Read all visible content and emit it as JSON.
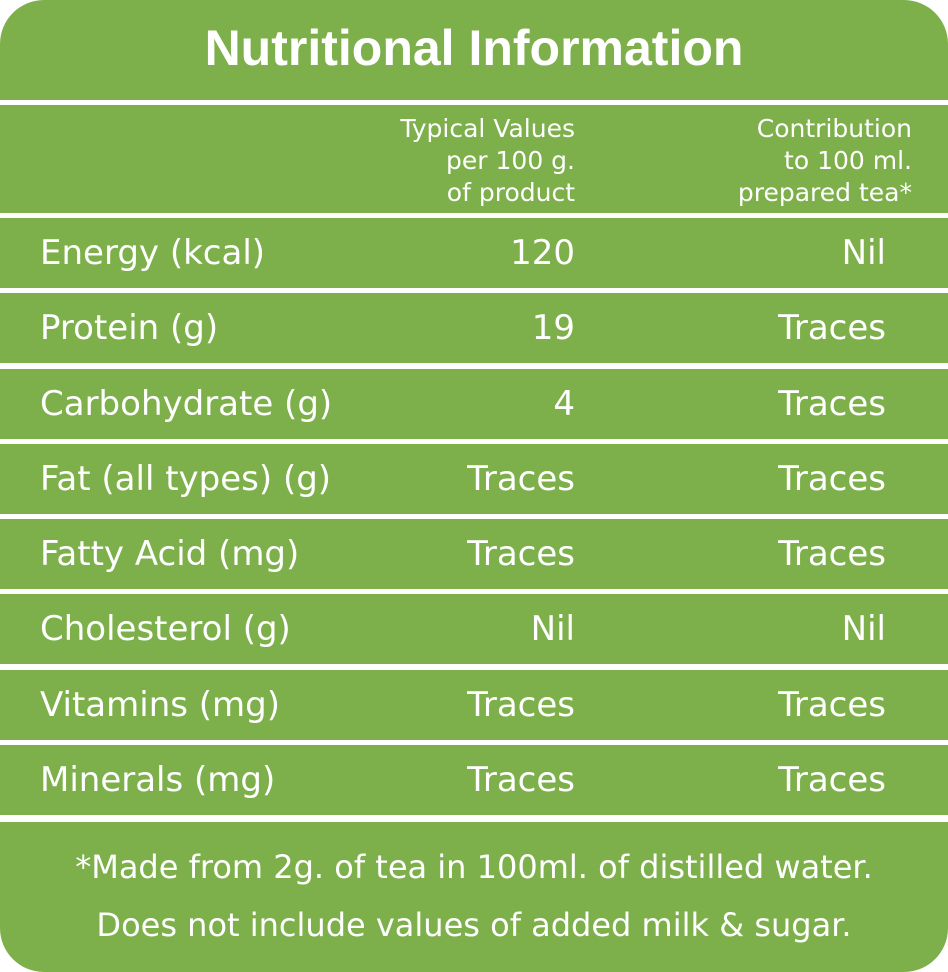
{
  "title": "Nutritional Information",
  "columns": {
    "typical": "Typical Values\nper 100 g.\nof product",
    "contribution": "Contribution\nto 100 ml.\nprepared tea*"
  },
  "rows": [
    {
      "label": "Energy (kcal)",
      "typical": "120",
      "contribution": "Nil"
    },
    {
      "label": "Protein (g)",
      "typical": "19",
      "contribution": "Traces"
    },
    {
      "label": "Carbohydrate (g)",
      "typical": "4",
      "contribution": "Traces"
    },
    {
      "label": "Fat (all types) (g)",
      "typical": "Traces",
      "contribution": "Traces"
    },
    {
      "label": "Fatty Acid (mg)",
      "typical": "Traces",
      "contribution": "Traces"
    },
    {
      "label": "Cholesterol (g)",
      "typical": "Nil",
      "contribution": "Nil"
    },
    {
      "label": "Vitamins (mg)",
      "typical": "Traces",
      "contribution": "Traces"
    },
    {
      "label": "Minerals (mg)",
      "typical": "Traces",
      "contribution": "Traces"
    }
  ],
  "footnote": {
    "line1": "*Made from 2g. of tea in 100ml. of distilled water.",
    "line2": "Does not include values of added milk & sugar."
  },
  "colors": {
    "band": "#7db04a",
    "divider": "#ffffff",
    "text": "#ffffff"
  }
}
